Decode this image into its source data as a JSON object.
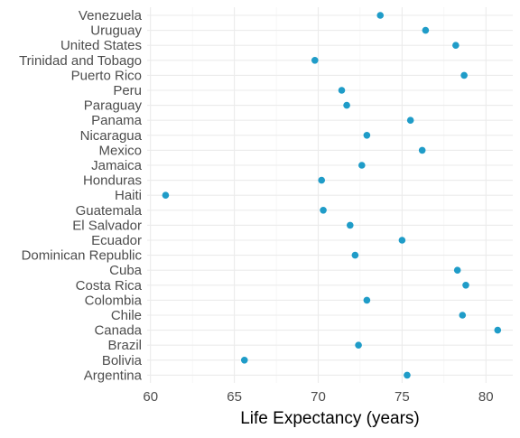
{
  "chart_data": {
    "type": "scatter",
    "title": "",
    "xlabel": "Life Expectancy (years)",
    "ylabel": "",
    "xlim": [
      59.8,
      81.6
    ],
    "x_ticks": [
      60,
      65,
      70,
      75,
      80
    ],
    "x_tick_labels": [
      "60",
      "65",
      "70",
      "75",
      "80"
    ],
    "grid": true,
    "legend": "none",
    "point_color": "#1f9cc8",
    "categories": [
      "Venezuela",
      "Uruguay",
      "United States",
      "Trinidad and Tobago",
      "Puerto Rico",
      "Peru",
      "Paraguay",
      "Panama",
      "Nicaragua",
      "Mexico",
      "Jamaica",
      "Honduras",
      "Haiti",
      "Guatemala",
      "El Salvador",
      "Ecuador",
      "Dominican Republic",
      "Cuba",
      "Costa Rica",
      "Colombia",
      "Chile",
      "Canada",
      "Brazil",
      "Bolivia",
      "Argentina"
    ],
    "values": [
      73.7,
      76.4,
      78.2,
      69.8,
      78.7,
      71.4,
      71.7,
      75.5,
      72.9,
      76.2,
      72.6,
      70.2,
      60.9,
      70.3,
      71.9,
      75.0,
      72.2,
      78.3,
      78.8,
      72.9,
      78.6,
      80.7,
      72.4,
      65.6,
      75.3
    ]
  }
}
